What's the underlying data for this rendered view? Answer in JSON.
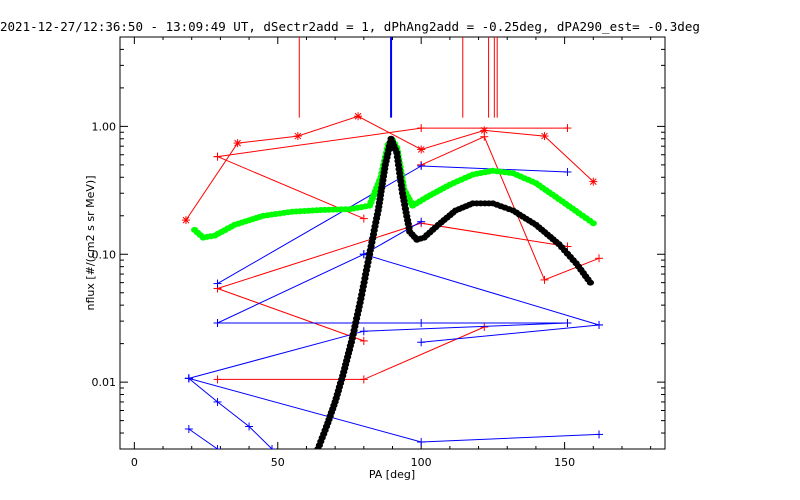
{
  "chart_data": {
    "type": "line",
    "title": "2021-12-27/12:36:50 - 13:09:49 UT, dSectr2add = 1, dPhAng2add = -0.25deg, dPA290_est=  -0.3deg",
    "xlabel": "PA [deg]",
    "ylabel": "nflux [#/(cm2 s sr MeV)]",
    "xlim": [
      -5,
      185
    ],
    "ylim": [
      0.003,
      5.0
    ],
    "yscale": "log",
    "x_ticks": [
      0,
      50,
      100,
      150
    ],
    "x_tick_labels": [
      "0",
      "50",
      "100",
      "150"
    ],
    "y_ticks": [
      0.01,
      0.1,
      1.0
    ],
    "y_tick_labels": [
      "0.01",
      "0.10",
      "1.00"
    ],
    "grid": false,
    "colors": {
      "red": "#ff0000",
      "blue": "#0000ff",
      "green": "#00ff00",
      "black": "#000000"
    },
    "vertical_markers": [
      {
        "x": 57.5,
        "y_from": 1.17,
        "color": "#ff0000",
        "width": 1
      },
      {
        "x": 89.5,
        "y_from": 1.17,
        "color": "#0000ff",
        "width": 2
      },
      {
        "x": 114.5,
        "y_from": 1.17,
        "color": "#ff0000",
        "width": 1
      },
      {
        "x": 123.5,
        "y_from": 1.17,
        "color": "#ff0000",
        "width": 1
      },
      {
        "x": 125.5,
        "y_from": 1.17,
        "color": "#ff0000",
        "width": 1
      },
      {
        "x": 126.5,
        "y_from": 1.17,
        "color": "#ff0000",
        "width": 1
      }
    ],
    "series": [
      {
        "color": "#ff0000",
        "marker": "star",
        "points": [
          [
            18,
            0.185
          ],
          [
            36,
            0.74
          ],
          [
            57,
            0.84
          ],
          [
            78,
            1.2
          ],
          [
            100,
            0.66
          ],
          [
            122,
            0.93
          ],
          [
            143,
            0.84
          ],
          [
            160,
            0.37
          ]
        ]
      },
      {
        "color": "#ff0000",
        "marker": "plus",
        "points": [
          [
            29,
            0.58
          ],
          [
            100,
            0.97
          ],
          [
            151,
            0.97
          ]
        ]
      },
      {
        "color": "#ff0000",
        "marker": "plus",
        "points": [
          [
            29,
            0.58
          ],
          [
            80,
            0.19
          ]
        ]
      },
      {
        "color": "#ff0000",
        "marker": "plus",
        "points": [
          [
            29,
            0.054
          ],
          [
            100,
            0.175
          ],
          [
            151,
            0.115
          ]
        ]
      },
      {
        "color": "#ff0000",
        "marker": "plus",
        "points": [
          [
            29,
            0.054
          ],
          [
            80,
            0.021
          ]
        ]
      },
      {
        "color": "#ff0000",
        "marker": "plus",
        "points": [
          [
            29,
            0.0105
          ],
          [
            80,
            0.0105
          ],
          [
            122,
            0.027
          ]
        ]
      },
      {
        "color": "#ff0000",
        "marker": "plus",
        "points": [
          [
            100,
            0.5
          ],
          [
            122,
            0.83
          ],
          [
            143,
            0.063
          ],
          [
            162,
            0.093
          ]
        ]
      },
      {
        "color": "#0000ff",
        "marker": "plus",
        "points": [
          [
            29,
            0.059
          ],
          [
            100,
            0.49
          ],
          [
            151,
            0.44
          ]
        ]
      },
      {
        "color": "#0000ff",
        "marker": "plus",
        "points": [
          [
            29,
            0.029
          ],
          [
            80,
            0.1
          ],
          [
            100,
            0.18
          ]
        ]
      },
      {
        "color": "#0000ff",
        "marker": "plus",
        "points": [
          [
            29,
            0.029
          ],
          [
            100,
            0.029
          ],
          [
            151,
            0.029
          ]
        ]
      },
      {
        "color": "#0000ff",
        "marker": "plus",
        "points": [
          [
            19,
            0.0107
          ],
          [
            80,
            0.025
          ],
          [
            151,
            0.029
          ]
        ]
      },
      {
        "color": "#0000ff",
        "marker": "plus",
        "points": [
          [
            19,
            0.0107
          ],
          [
            100,
            0.0034
          ],
          [
            162,
            0.0039
          ]
        ]
      },
      {
        "color": "#0000ff",
        "marker": "plus",
        "points": [
          [
            19,
            0.0043
          ],
          [
            29,
            0.003
          ]
        ]
      },
      {
        "color": "#0000ff",
        "marker": "plus",
        "points": [
          [
            80,
            0.1
          ],
          [
            162,
            0.028
          ]
        ]
      },
      {
        "color": "#0000ff",
        "marker": "plus",
        "points": [
          [
            100,
            0.0205
          ],
          [
            162,
            0.028
          ]
        ]
      },
      {
        "color": "#0000ff",
        "marker": "plus",
        "points": [
          [
            19,
            0.0107
          ],
          [
            29,
            0.007
          ],
          [
            40,
            0.0045
          ],
          [
            48,
            0.003
          ]
        ]
      }
    ],
    "fit_curves": [
      {
        "color": "#00ff00",
        "style": "dots",
        "points": [
          [
            21,
            0.155
          ],
          [
            24,
            0.135
          ],
          [
            28,
            0.14
          ],
          [
            35,
            0.17
          ],
          [
            45,
            0.2
          ],
          [
            55,
            0.215
          ],
          [
            65,
            0.222
          ],
          [
            75,
            0.225
          ],
          [
            82,
            0.24
          ],
          [
            86,
            0.4
          ],
          [
            88.5,
            0.72
          ],
          [
            90,
            0.78
          ],
          [
            91.5,
            0.68
          ],
          [
            94,
            0.32
          ],
          [
            97,
            0.24
          ],
          [
            102,
            0.28
          ],
          [
            110,
            0.35
          ],
          [
            118,
            0.42
          ],
          [
            125,
            0.45
          ],
          [
            132,
            0.43
          ],
          [
            140,
            0.36
          ],
          [
            148,
            0.27
          ],
          [
            155,
            0.21
          ],
          [
            160,
            0.175
          ]
        ]
      },
      {
        "color": "#000000",
        "style": "dots",
        "points": [
          [
            64,
            0.003
          ],
          [
            67,
            0.0045
          ],
          [
            70,
            0.007
          ],
          [
            73,
            0.012
          ],
          [
            76,
            0.022
          ],
          [
            79,
            0.045
          ],
          [
            82,
            0.1
          ],
          [
            85,
            0.22
          ],
          [
            87.5,
            0.5
          ],
          [
            89.5,
            0.8
          ],
          [
            91.5,
            0.62
          ],
          [
            93.5,
            0.3
          ],
          [
            96,
            0.15
          ],
          [
            98.5,
            0.13
          ],
          [
            101,
            0.135
          ],
          [
            106,
            0.17
          ],
          [
            112,
            0.22
          ],
          [
            118,
            0.25
          ],
          [
            125,
            0.25
          ],
          [
            132,
            0.22
          ],
          [
            140,
            0.17
          ],
          [
            148,
            0.12
          ],
          [
            154,
            0.085
          ],
          [
            159,
            0.06
          ]
        ]
      }
    ]
  }
}
